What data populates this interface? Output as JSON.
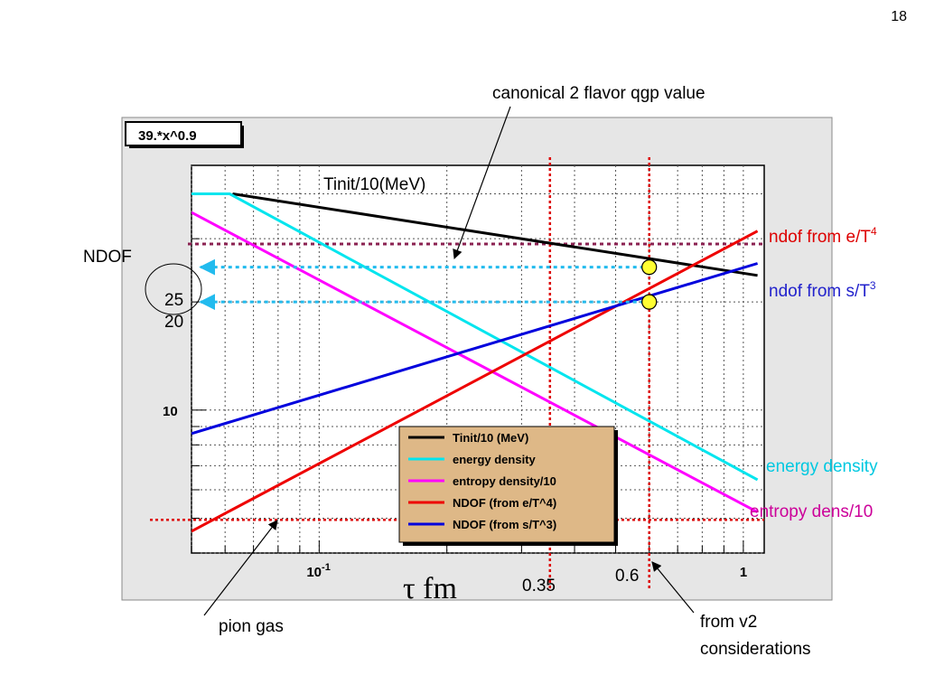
{
  "slide": {
    "page_number": "18",
    "annotations": {
      "canonical": "canonical 2 flavor qgp value",
      "tinit_curve_label": "Tinit/10(MeV)",
      "ndof_axis": "NDOF",
      "tick_25": "25",
      "tick_20": "20",
      "ndof_e": "ndof from e/T",
      "ndof_e_exp": "4",
      "ndof_s": "ndof from s/T",
      "ndof_s_exp": "3",
      "energy_density": "energy density",
      "entropy_dens": "entropy dens/10",
      "pion_gas": "pion gas",
      "from_v2_line1": "from v2",
      "from_v2_line2": "considerations",
      "tau_label": "τ fm",
      "v035": "0.35",
      "v06": "0.6"
    },
    "colors": {
      "canonical_line": "#8b2252",
      "marker_dashes": "#dd0000",
      "arrow_dashes": "#22bbee",
      "marker_fill": "#ffff33",
      "ndof_e_text": "#dd0000",
      "ndof_s_text": "#2222cc",
      "energy_text": "#00c8e0",
      "entropy_text": "#cc0099"
    }
  },
  "chart_data": {
    "type": "line",
    "fit_box": "39.*x^0.9",
    "x_scale": "log",
    "y_scale": "log",
    "xlim": [
      0.05,
      1.12
    ],
    "ylim": [
      4.0,
      48.0
    ],
    "x_tick_labels": [
      {
        "value": 0.1,
        "base": "10",
        "exp": "-1"
      },
      {
        "value": 1.0,
        "base": "1",
        "exp": ""
      }
    ],
    "y_tick_labels": [
      {
        "value": 10,
        "text": "10"
      }
    ],
    "legend": {
      "placement": "bottom-center",
      "entries": [
        {
          "label": "Tinit/10 (MeV)",
          "color": "#000000"
        },
        {
          "label": "energy density",
          "color": "#00e5ee"
        },
        {
          "label": "entropy density/10",
          "color": "#ff00ff"
        },
        {
          "label": "NDOF (from e/T^4)",
          "color": "#ee0000"
        },
        {
          "label": "NDOF (from s/T^3)",
          "color": "#0000dd"
        }
      ]
    },
    "series": [
      {
        "name": "Tinit/10 (MeV)",
        "color": "#000000",
        "x": [
          0.0625,
          1.08
        ],
        "y": [
          40,
          23.7
        ]
      },
      {
        "name": "energy density",
        "color": "#00e5ee",
        "x": [
          0.05,
          0.0615,
          1.08
        ],
        "y": [
          40,
          40,
          6.4
        ]
      },
      {
        "name": "entropy density/10",
        "color": "#ff00ff",
        "x": [
          0.05,
          1.08
        ],
        "y": [
          35.5,
          5.2
        ]
      },
      {
        "name": "NDOF (from e/T^4)",
        "color": "#ee0000",
        "x": [
          0.05,
          1.08
        ],
        "y": [
          4.6,
          31.5
        ]
      },
      {
        "name": "NDOF (from s/T^3)",
        "color": "#0000dd",
        "x": [
          0.05,
          1.08
        ],
        "y": [
          8.6,
          25.6
        ]
      }
    ],
    "reference_lines": {
      "canonical_y": 29,
      "pion_gas_y": 4.95,
      "tau_lines_x": [
        0.35,
        0.6
      ],
      "ndof_arrows_y": [
        25,
        20
      ]
    },
    "markers": [
      {
        "x": 0.6,
        "y": 25
      },
      {
        "x": 0.6,
        "y": 20
      }
    ]
  }
}
